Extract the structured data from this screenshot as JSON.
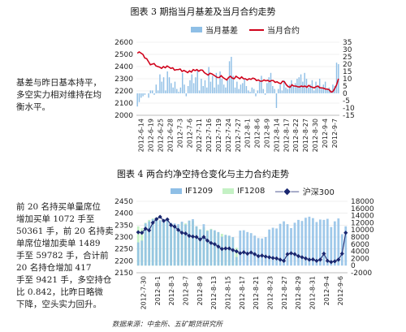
{
  "fig1": {
    "title": "图表 3 期指当月基差及当月合约走势",
    "legend_bar": "当月基差",
    "legend_line": "当月合约",
    "side_text": "基差与昨日基本持平，\n多空实力相对维持在均\n衡水平。"
  },
  "fig2": {
    "title": "图表 4 两合约净空持仓变化与主力合约走势",
    "legend_a": "IF1209",
    "legend_b": "IF1208",
    "legend_c": "沪深300",
    "side_text": "前 20 名持买单量席位\n增加买单 1072 手至\n50361 手，前 20 名持卖\n单席位增加卖单 1489\n手至 59782 手，合计前\n20 名持仓增加 417\n手至 9421 手，多空持仓\n比 0.842，比昨日略微\n下降，空头实力回升。"
  },
  "source": "数据来源：中金所、五矿期货研究所",
  "colors": {
    "bar_blue": "#8fbfe6",
    "line_red": "#d0021b",
    "bar_green": "#c4f1c4",
    "line_navy": "#1a2770"
  },
  "chart_data": [
    {
      "type": "bar",
      "title": "",
      "xticks": [
        "2012-6-14",
        "2012-6-19",
        "2012-6-25",
        "2012-6-28",
        "2012-7-3",
        "2012-7-6",
        "2012-7-11",
        "2012-7-16",
        "2012-7-19",
        "2012-7-24",
        "2012-7-27",
        "2012-8-1",
        "2012-8-6",
        "2012-8-9",
        "2012-8-14",
        "2012-8-17",
        "2012-8-22",
        "2012-8-27",
        "2012-8-30",
        "2012-9-4",
        "2012-9-7"
      ],
      "left_axis": {
        "ylim": [
          2000,
          2600
        ],
        "ticks": [
          2000,
          2100,
          2200,
          2300,
          2400,
          2500,
          2600
        ]
      },
      "right_axis": {
        "ylim": [
          -15,
          35
        ],
        "ticks": [
          -15,
          -10,
          -5,
          0,
          5,
          10,
          15,
          20,
          25,
          30,
          35
        ]
      },
      "series": [
        {
          "name": "当月基差",
          "type": "bar",
          "axis": "right",
          "values": [
            -9,
            -6,
            -3,
            -2,
            -1,
            0,
            -3,
            2,
            2,
            -1,
            6,
            2,
            13,
            8,
            11,
            2,
            15,
            11,
            7,
            4,
            8,
            3,
            1,
            4,
            14,
            6,
            -2,
            5,
            9,
            13,
            7,
            11,
            16,
            2,
            10,
            5,
            9,
            4,
            18,
            8,
            12,
            4,
            14,
            6,
            15,
            10,
            6,
            4,
            9,
            22,
            25,
            12,
            4,
            8,
            3,
            6,
            7,
            10,
            5,
            2,
            1,
            4,
            3,
            -2,
            2,
            8,
            12,
            3,
            -1,
            7,
            11,
            14,
            5,
            3,
            -10,
            3,
            6,
            2,
            9,
            4,
            3,
            6,
            9,
            5,
            7,
            10,
            11,
            13,
            8,
            14,
            10,
            4,
            6,
            9,
            2,
            8,
            5,
            10,
            4,
            6,
            8,
            3,
            4,
            2,
            6,
            5,
            21,
            20
          ]
        },
        {
          "name": "当月合约",
          "type": "line",
          "axis": "left",
          "values": [
            2510,
            2520,
            2510,
            2500,
            2470,
            2465,
            2440,
            2415,
            2420,
            2425,
            2405,
            2400,
            2395,
            2385,
            2400,
            2390,
            2405,
            2395,
            2385,
            2390,
            2370,
            2375,
            2375,
            2380,
            2360,
            2368,
            2360,
            2350,
            2365,
            2355,
            2375,
            2367,
            2375,
            2362,
            2372,
            2370,
            2350,
            2340,
            2330,
            2345,
            2340,
            2330,
            2320,
            2310,
            2310,
            2325,
            2310,
            2300,
            2290,
            2310,
            2320,
            2305,
            2300,
            2320,
            2310,
            2300,
            2315,
            2300,
            2300,
            2290,
            2300,
            2295,
            2305,
            2300,
            2285,
            2290,
            2280,
            2280,
            2290,
            2283,
            2287,
            2278,
            2285,
            2285,
            2270,
            2275,
            2265,
            2260,
            2280,
            2275,
            2250,
            2235,
            2230,
            2250,
            2240,
            2240,
            2235,
            2232,
            2240,
            2235,
            2240,
            2230,
            2245,
            2235,
            2230,
            2225,
            2235,
            2240,
            2225,
            2225,
            2222,
            2215,
            2215,
            2210,
            2190,
            2195,
            2220,
            2250,
            2300
          ]
        }
      ]
    },
    {
      "type": "bar",
      "title": "",
      "xticks": [
        "2012-7-30",
        "2012-8-1",
        "2012-8-3",
        "2012-8-7",
        "2012-8-9",
        "2012-8-13",
        "2012-8-15",
        "2012-8-17",
        "2012-8-21",
        "2012-8-23",
        "2012-8-27",
        "2012-8-29",
        "2012-8-31",
        "2012-9-4",
        "2012-9-6"
      ],
      "left_axis": {
        "ylim": [
          2150,
          2450
        ],
        "ticks": [
          2150,
          2200,
          2250,
          2300,
          2350,
          2400,
          2450
        ]
      },
      "right_axis": {
        "ylim": [
          -2000,
          18000
        ],
        "ticks": [
          -2000,
          0,
          2000,
          4000,
          6000,
          8000,
          10000,
          12000,
          14000,
          16000,
          18000
        ]
      },
      "series": [
        {
          "name": "IF1208",
          "type": "bar",
          "axis": "right",
          "values": [
            11000,
            10500,
            12000,
            12800,
            13200,
            13500,
            12700,
            12000,
            12500,
            11800,
            11500,
            11200,
            12100,
            11800,
            12600,
            12500,
            11000,
            10200,
            10700,
            9900,
            10300,
            9700,
            9300,
            8900,
            8600,
            8200,
            7800,
            5000,
            0,
            0,
            0,
            0,
            0,
            0,
            0,
            0,
            0,
            0,
            0,
            0,
            0,
            0,
            0,
            0,
            0,
            0,
            0,
            0,
            0,
            0,
            0,
            0,
            0,
            0,
            0,
            0,
            0,
            0
          ]
        },
        {
          "name": "IF1209",
          "type": "bar",
          "axis": "right",
          "values": [
            6500,
            7000,
            11800,
            12400,
            13000,
            13400,
            12700,
            12500,
            13200,
            12000,
            11800,
            11600,
            12300,
            11500,
            12600,
            13000,
            11000,
            10100,
            11600,
            9700,
            10100,
            9900,
            9400,
            8100,
            8600,
            8400,
            8000,
            2400,
            9800,
            9900,
            9400,
            9100,
            8400,
            7700,
            7600,
            8000,
            10100,
            10600,
            10400,
            11700,
            12400,
            11600,
            10500,
            12000,
            12800,
            12500,
            13400,
            13700,
            13300,
            12200,
            12900,
            12800,
            13100,
            10800,
            12400,
            13200,
            8800,
            11000
          ]
        },
        {
          "name": "沪深300",
          "type": "line",
          "axis": "left",
          "values": [
            2320,
            2318,
            2335,
            2328,
            2360,
            2375,
            2385,
            2368,
            2374,
            2350,
            2344,
            2330,
            2318,
            2315,
            2305,
            2302,
            2300,
            2290,
            2300,
            2285,
            2275,
            2270,
            2260,
            2250,
            2252,
            2252,
            2245,
            2240,
            2232,
            2236,
            2230,
            2235,
            2228,
            2220,
            2222,
            2218,
            2215,
            2212,
            2210,
            2205,
            2200,
            2228,
            2232,
            2228,
            2220,
            2215,
            2210,
            2205,
            2206,
            2200,
            2205,
            2230,
            2200,
            2195,
            2198,
            2205,
            2230,
            2318
          ]
        }
      ]
    }
  ]
}
